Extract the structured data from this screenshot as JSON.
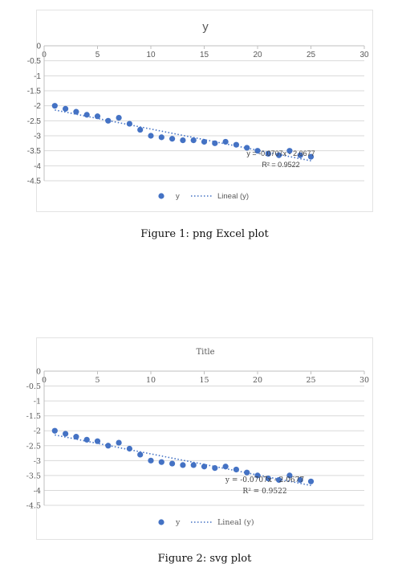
{
  "chart_data": [
    {
      "type": "scatter",
      "title": "y",
      "x_ticks": [
        0,
        5,
        10,
        15,
        20,
        25,
        30
      ],
      "y_ticks": [
        0,
        -0.5,
        -1,
        -1.5,
        -2,
        -2.5,
        -3,
        -3.5,
        -4,
        -4.5
      ],
      "xlim": [
        0,
        30
      ],
      "ylim": [
        -4.5,
        0
      ],
      "grid": true,
      "series": [
        {
          "name": "y",
          "color": "#4472c4",
          "x": [
            1,
            2,
            3,
            4,
            5,
            6,
            7,
            8,
            9,
            10,
            11,
            12,
            13,
            14,
            15,
            16,
            17,
            18,
            19,
            20,
            21,
            22,
            23,
            24,
            25
          ],
          "y": [
            -2.0,
            -2.1,
            -2.2,
            -2.3,
            -2.35,
            -2.5,
            -2.4,
            -2.6,
            -2.8,
            -3.0,
            -3.05,
            -3.1,
            -3.15,
            -3.15,
            -3.2,
            -3.25,
            -3.2,
            -3.3,
            -3.4,
            -3.5,
            -3.6,
            -3.65,
            -3.5,
            -3.65,
            -3.7
          ]
        }
      ],
      "trendline": {
        "name": "Lineal (y)",
        "type": "linear",
        "color": "#4472c4",
        "equation_text": "y = -0.0707x - 2.0677",
        "r2_text": "R² = 0.9522",
        "x": [
          1,
          25
        ],
        "y": [
          -2.14,
          -3.835
        ]
      },
      "legend_position": "bottom"
    },
    {
      "type": "scatter",
      "title": "Title",
      "x_ticks": [
        0,
        5,
        10,
        15,
        20,
        25,
        30
      ],
      "y_ticks": [
        0,
        -0.5,
        -1,
        -1.5,
        -2,
        -2.5,
        -3,
        -3.5,
        -4,
        -4.5
      ],
      "xlim": [
        0,
        30
      ],
      "ylim": [
        -4.5,
        0
      ],
      "grid": true,
      "series": [
        {
          "name": "y",
          "color": "#4472c4",
          "x": [
            1,
            2,
            3,
            4,
            5,
            6,
            7,
            8,
            9,
            10,
            11,
            12,
            13,
            14,
            15,
            16,
            17,
            18,
            19,
            20,
            21,
            22,
            23,
            24,
            25
          ],
          "y": [
            -2.0,
            -2.1,
            -2.2,
            -2.3,
            -2.35,
            -2.5,
            -2.4,
            -2.6,
            -2.8,
            -3.0,
            -3.05,
            -3.1,
            -3.15,
            -3.15,
            -3.2,
            -3.25,
            -3.2,
            -3.3,
            -3.4,
            -3.5,
            -3.6,
            -3.65,
            -3.5,
            -3.65,
            -3.7
          ]
        }
      ],
      "trendline": {
        "name": "Lineal (y)",
        "type": "linear",
        "color": "#4472c4",
        "equation_text": "y = -0.0707x - 2.0677",
        "r2_text": "R² = 0.9522",
        "x": [
          1,
          25
        ],
        "y": [
          -2.14,
          -3.835
        ]
      },
      "legend_position": "bottom"
    }
  ],
  "captions": {
    "fig1": "Figure 1: png Excel plot",
    "fig2": "Figure 2: svg plot"
  }
}
